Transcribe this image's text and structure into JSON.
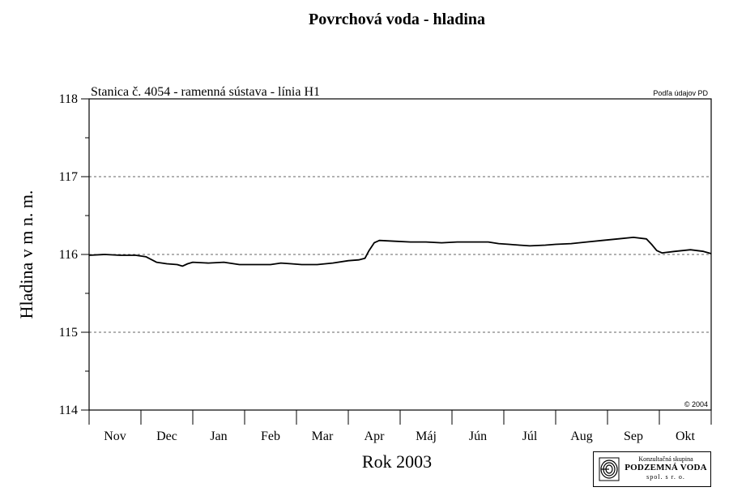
{
  "chart_data": {
    "type": "line",
    "title": "Povrchová voda - hladina",
    "subtitle": "Stanica č. 4054 - ramenná sústava - línia H1",
    "source_note": "Podľa údajov PD",
    "copyright": "© 2004",
    "xlabel": "Rok 2003",
    "ylabel": "Hladina v m n. m.",
    "categories": [
      "Nov",
      "Dec",
      "Jan",
      "Feb",
      "Mar",
      "Apr",
      "Máj",
      "Jún",
      "Júl",
      "Aug",
      "Sep",
      "Okt"
    ],
    "ylim": [
      114,
      118
    ],
    "yticks": [
      114,
      115,
      116,
      117,
      118
    ],
    "grid": "dashed horizontal lines at 115, 116, 117",
    "series": [
      {
        "values": [
          [
            0.0,
            115.99
          ],
          [
            0.3,
            116.0
          ],
          [
            0.6,
            115.99
          ],
          [
            0.9,
            115.99
          ],
          [
            1.1,
            115.97
          ],
          [
            1.3,
            115.9
          ],
          [
            1.5,
            115.88
          ],
          [
            1.7,
            115.87
          ],
          [
            1.8,
            115.85
          ],
          [
            1.9,
            115.88
          ],
          [
            2.0,
            115.9
          ],
          [
            2.3,
            115.89
          ],
          [
            2.6,
            115.9
          ],
          [
            2.9,
            115.87
          ],
          [
            3.2,
            115.87
          ],
          [
            3.5,
            115.87
          ],
          [
            3.7,
            115.89
          ],
          [
            3.9,
            115.88
          ],
          [
            4.1,
            115.87
          ],
          [
            4.4,
            115.87
          ],
          [
            4.7,
            115.89
          ],
          [
            5.0,
            115.92
          ],
          [
            5.2,
            115.93
          ],
          [
            5.32,
            115.95
          ],
          [
            5.4,
            116.05
          ],
          [
            5.5,
            116.15
          ],
          [
            5.6,
            116.18
          ],
          [
            5.9,
            116.17
          ],
          [
            6.2,
            116.16
          ],
          [
            6.5,
            116.16
          ],
          [
            6.8,
            116.15
          ],
          [
            7.1,
            116.16
          ],
          [
            7.4,
            116.16
          ],
          [
            7.7,
            116.16
          ],
          [
            7.9,
            116.14
          ],
          [
            8.1,
            116.13
          ],
          [
            8.3,
            116.12
          ],
          [
            8.5,
            116.11
          ],
          [
            8.8,
            116.12
          ],
          [
            9.0,
            116.13
          ],
          [
            9.3,
            116.14
          ],
          [
            9.6,
            116.16
          ],
          [
            9.9,
            116.18
          ],
          [
            10.2,
            116.2
          ],
          [
            10.5,
            116.22
          ],
          [
            10.75,
            116.2
          ],
          [
            10.85,
            116.13
          ],
          [
            10.95,
            116.05
          ],
          [
            11.05,
            116.02
          ],
          [
            11.3,
            116.04
          ],
          [
            11.6,
            116.06
          ],
          [
            11.85,
            116.04
          ],
          [
            12.0,
            116.01
          ]
        ]
      }
    ]
  },
  "logo": {
    "line1": "Konzultačná skupina",
    "line2": "PODZEMNÁ VODA",
    "line3": "spol. s r. o."
  }
}
